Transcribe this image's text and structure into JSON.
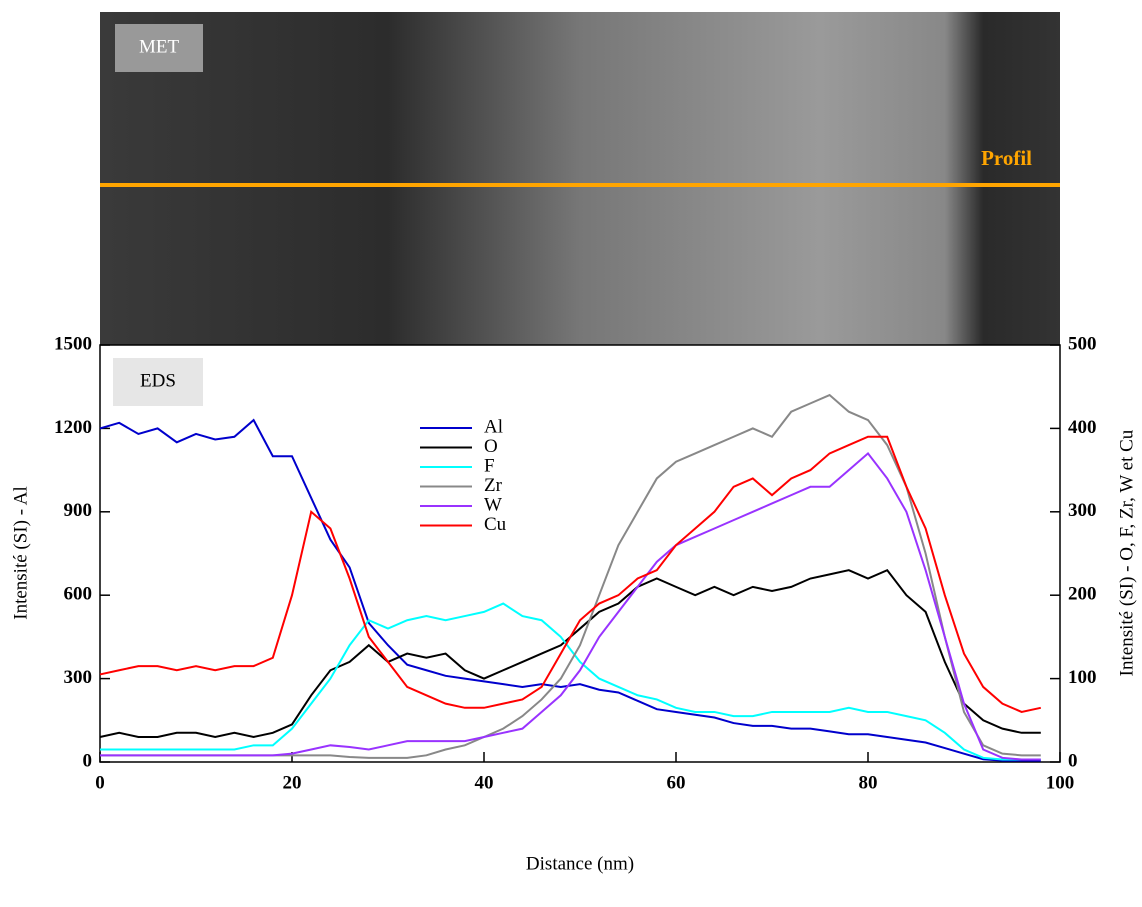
{
  "chart_data": {
    "type": "line",
    "image_label": "MET",
    "profile_label": "Profil",
    "panel_label": "EDS",
    "xlabel": "Distance (nm)",
    "ylabel": "Intensité (SI) - Al",
    "y2label": "Intensité (SI) - O, F, Zr, W et Cu",
    "xlim": [
      0,
      100
    ],
    "xticks": [
      0,
      20,
      40,
      60,
      80,
      100
    ],
    "ylim": [
      0,
      1500
    ],
    "yticks": [
      0,
      300,
      600,
      900,
      1200,
      1500
    ],
    "y2lim": [
      0,
      500
    ],
    "y2ticks": [
      0,
      100,
      200,
      300,
      400,
      500
    ],
    "x": [
      0,
      2,
      4,
      6,
      8,
      10,
      12,
      14,
      16,
      18,
      20,
      22,
      24,
      26,
      28,
      30,
      32,
      34,
      36,
      38,
      40,
      42,
      44,
      46,
      48,
      50,
      52,
      54,
      56,
      58,
      60,
      62,
      64,
      66,
      68,
      70,
      72,
      74,
      76,
      78,
      80,
      82,
      84,
      86,
      88,
      90,
      92,
      94,
      96,
      98
    ],
    "series": [
      {
        "name": "Al",
        "color": "#0000cc",
        "axis": "y",
        "values": [
          1200,
          1220,
          1180,
          1200,
          1150,
          1180,
          1160,
          1170,
          1230,
          1100,
          1100,
          950,
          800,
          700,
          500,
          420,
          350,
          330,
          310,
          300,
          290,
          280,
          270,
          280,
          270,
          280,
          260,
          250,
          220,
          190,
          180,
          170,
          160,
          140,
          130,
          130,
          120,
          120,
          110,
          100,
          100,
          90,
          80,
          70,
          50,
          30,
          10,
          5,
          5,
          5
        ]
      },
      {
        "name": "O",
        "color": "#000000",
        "axis": "y2",
        "values": [
          30,
          35,
          30,
          30,
          35,
          35,
          30,
          35,
          30,
          35,
          45,
          80,
          110,
          120,
          140,
          120,
          130,
          125,
          130,
          110,
          100,
          110,
          120,
          130,
          140,
          160,
          180,
          190,
          210,
          220,
          210,
          200,
          210,
          200,
          210,
          205,
          210,
          220,
          225,
          230,
          220,
          230,
          200,
          180,
          120,
          70,
          50,
          40,
          35,
          35
        ]
      },
      {
        "name": "F",
        "color": "#00ffff",
        "axis": "y2",
        "values": [
          15,
          15,
          15,
          15,
          15,
          15,
          15,
          15,
          20,
          20,
          40,
          70,
          100,
          140,
          170,
          160,
          170,
          175,
          170,
          175,
          180,
          190,
          175,
          170,
          150,
          120,
          100,
          90,
          80,
          75,
          65,
          60,
          60,
          55,
          55,
          60,
          60,
          60,
          60,
          65,
          60,
          60,
          55,
          50,
          35,
          15,
          5,
          3,
          3,
          3
        ]
      },
      {
        "name": "Zr",
        "color": "#888888",
        "axis": "y2",
        "values": [
          8,
          8,
          8,
          8,
          8,
          8,
          8,
          8,
          8,
          8,
          8,
          8,
          8,
          6,
          5,
          5,
          5,
          8,
          15,
          20,
          30,
          40,
          55,
          75,
          100,
          140,
          200,
          260,
          300,
          340,
          360,
          370,
          380,
          390,
          400,
          390,
          420,
          430,
          440,
          420,
          410,
          380,
          330,
          250,
          150,
          60,
          20,
          10,
          8,
          8
        ]
      },
      {
        "name": "W",
        "color": "#9933ff",
        "axis": "y2",
        "values": [
          8,
          8,
          8,
          8,
          8,
          8,
          8,
          8,
          8,
          8,
          10,
          15,
          20,
          18,
          15,
          20,
          25,
          25,
          25,
          25,
          30,
          35,
          40,
          60,
          80,
          110,
          150,
          180,
          210,
          240,
          260,
          270,
          280,
          290,
          300,
          310,
          320,
          330,
          330,
          350,
          370,
          340,
          300,
          230,
          150,
          70,
          15,
          5,
          3,
          3
        ]
      },
      {
        "name": "Cu",
        "color": "#ff0000",
        "axis": "y2",
        "values": [
          105,
          110,
          115,
          115,
          110,
          115,
          110,
          115,
          115,
          125,
          200,
          300,
          280,
          220,
          150,
          120,
          90,
          80,
          70,
          65,
          65,
          70,
          75,
          90,
          130,
          170,
          190,
          200,
          220,
          230,
          260,
          280,
          300,
          330,
          340,
          320,
          340,
          350,
          370,
          380,
          390,
          390,
          330,
          280,
          200,
          130,
          90,
          70,
          60,
          65
        ]
      }
    ]
  }
}
